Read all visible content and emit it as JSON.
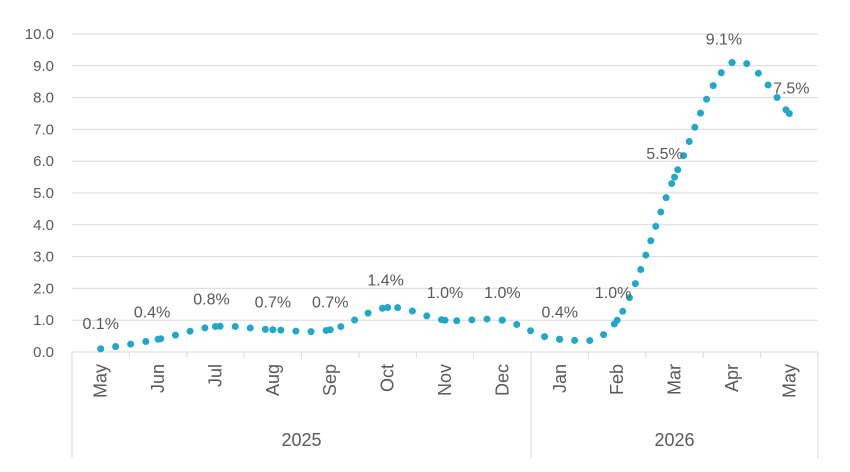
{
  "chart_data": {
    "type": "line",
    "line_style": "dotted",
    "x": [
      "May",
      "Jun",
      "Jul",
      "Aug",
      "Sep",
      "Oct",
      "Nov",
      "Dec",
      "Jan",
      "Feb",
      "Mar",
      "Apr",
      "May"
    ],
    "year_groups": [
      {
        "label": "2025",
        "months": [
          "May",
          "Jun",
          "Jul",
          "Aug",
          "Sep",
          "Oct",
          "Nov",
          "Dec"
        ]
      },
      {
        "label": "2026",
        "months": [
          "Jan",
          "Feb",
          "Mar",
          "Apr",
          "May"
        ]
      }
    ],
    "series": [
      {
        "values": [
          0.1,
          0.4,
          0.8,
          0.7,
          0.7,
          1.4,
          1.0,
          1.0,
          0.4,
          1.0,
          5.5,
          9.1,
          7.5
        ]
      }
    ],
    "data_labels": [
      "0.1%",
      "0.4%",
      "0.8%",
      "0.7%",
      "0.7%",
      "1.4%",
      "1.0%",
      "1.0%",
      "0.4%",
      "1.0%",
      "5.5%",
      "9.1%",
      "7.5%"
    ],
    "y_tick_labels": [
      "0.0",
      "1.0",
      "2.0",
      "3.0",
      "4.0",
      "5.0",
      "6.0",
      "7.0",
      "8.0",
      "9.0",
      "10.0"
    ],
    "ylim": [
      0,
      10
    ],
    "y_major": 1,
    "grid": "horizontal",
    "legend": "none",
    "title": "",
    "xlabel": "",
    "ylabel": "",
    "colors": {
      "series": "#1fa8c9",
      "grid": "#d9d9d9",
      "text": "#595959"
    }
  }
}
